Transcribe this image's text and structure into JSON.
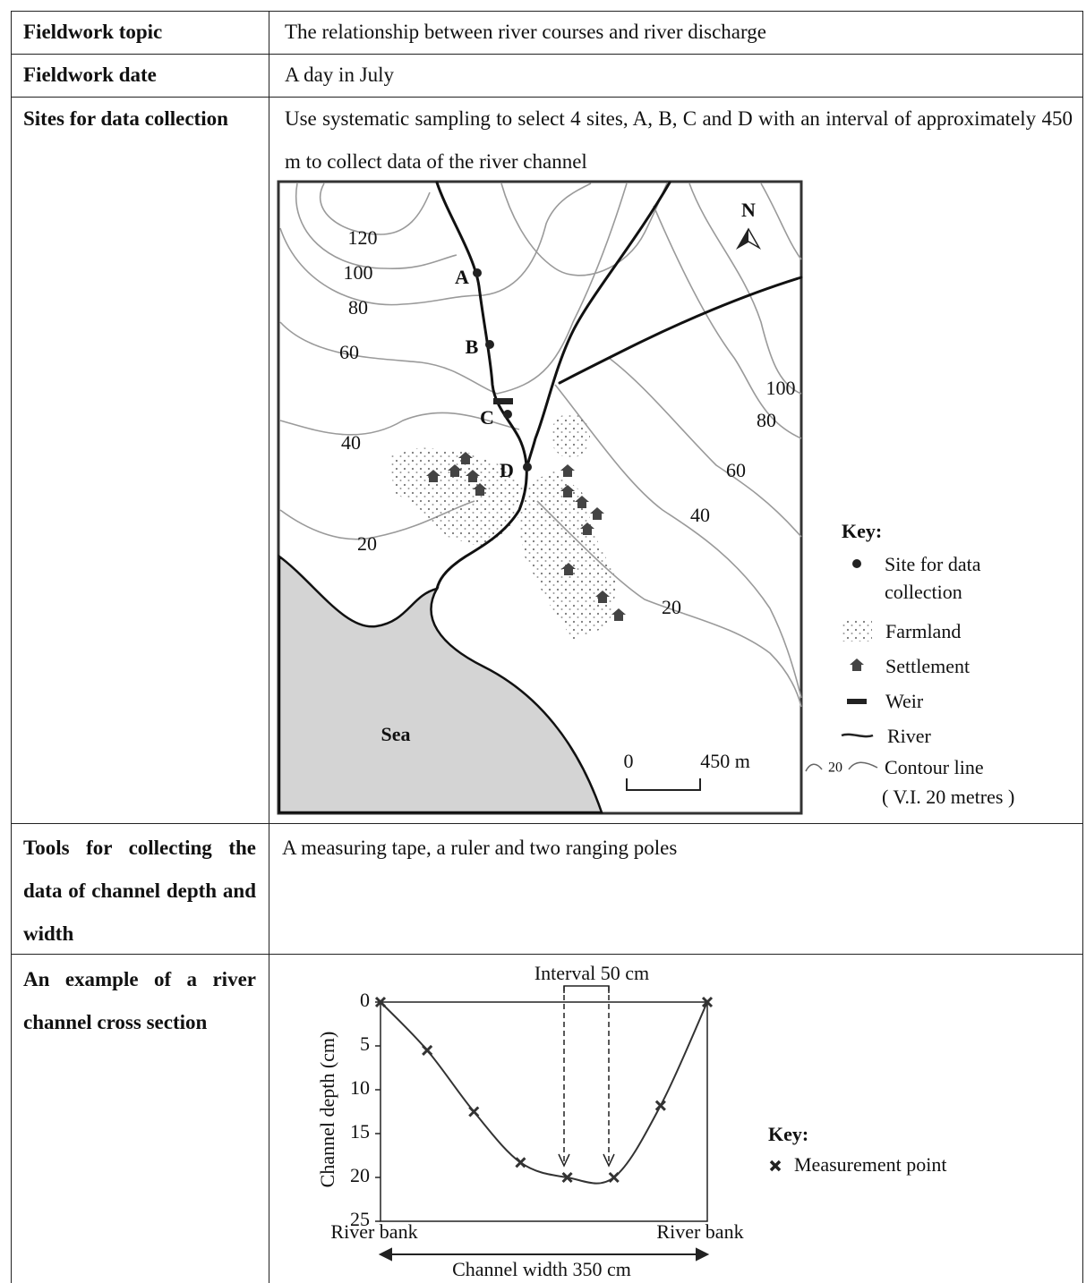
{
  "table": {
    "rows": [
      [
        "Fieldwork topic",
        "The relationship between river courses and river discharge"
      ],
      [
        "Fieldwork date",
        "A day in July"
      ],
      [
        "Sites for data collection",
        "Use systematic sampling to select 4 sites, A, B, C and D with an interval of approximately 450 m to collect data of the river channel"
      ],
      [
        "Tools for collecting the data of channel depth and width",
        "A measuring tape, a ruler and two ranging poles"
      ],
      [
        "An example of a river channel cross section"
      ]
    ]
  },
  "map": {
    "north": "N",
    "sea": "Sea",
    "sites": [
      "A",
      "B",
      "C",
      "D"
    ],
    "contour_labels": [
      "120",
      "100",
      "80",
      "60",
      "40",
      "20",
      "100",
      "80",
      "60",
      "40",
      "20"
    ],
    "scale": [
      "0",
      "450 m"
    ],
    "key": {
      "title": "Key:",
      "items": [
        "Site for data collection",
        "Farmland",
        "Settlement",
        "Weir",
        "River",
        "Contour line"
      ],
      "contour_sample": "20",
      "contour_note": "( V.I. 20 metres )"
    }
  },
  "cross_section": {
    "type": "line",
    "y_label": "Channel depth (cm)",
    "x": [
      0,
      50,
      100,
      150,
      200,
      250,
      300,
      350
    ],
    "values": [
      0,
      5.5,
      12.5,
      18.3,
      20,
      20,
      11.8,
      0
    ],
    "xlim": [
      0,
      350
    ],
    "ylim": [
      0,
      25
    ],
    "yticks": [
      0,
      5,
      10,
      15,
      20,
      25
    ],
    "color": "#333333",
    "bank_labels": [
      "River bank",
      "River bank"
    ],
    "width_label": "Channel width 350 cm",
    "interval_label": "Interval 50 cm",
    "key_title": "Key:",
    "key_item": "Measurement point"
  }
}
